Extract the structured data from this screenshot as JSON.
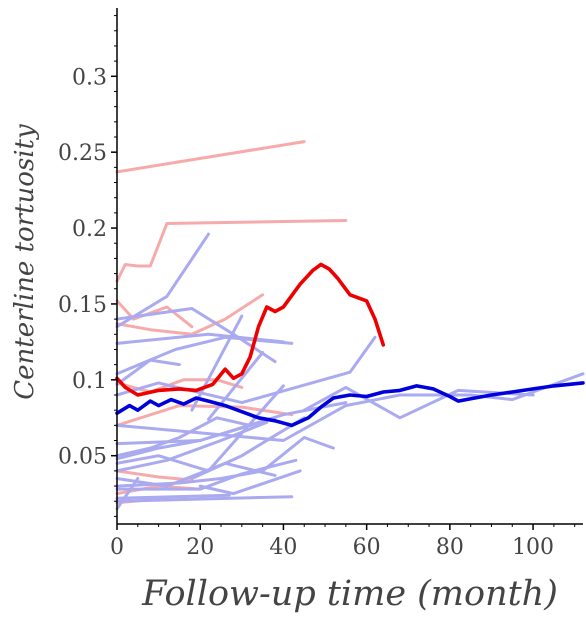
{
  "chart_data": {
    "type": "line",
    "xlabel": "Follow-up time (month)",
    "ylabel": "Centerline tortuosity",
    "xlim": [
      0,
      112
    ],
    "ylim": [
      0.005,
      0.345
    ],
    "x_ticks": [
      0,
      20,
      40,
      60,
      80,
      100
    ],
    "y_ticks": [
      0.05,
      0.1,
      0.15,
      0.2,
      0.25,
      0.3
    ],
    "grid": false,
    "colors": {
      "group_a_individual": "#f6aaaa",
      "group_b_individual": "#aaaaf0",
      "group_a_mean": "#ee0000",
      "group_b_mean": "#0000dd"
    },
    "series": [
      {
        "group": "a",
        "role": "individual",
        "x": [
          0,
          45
        ],
        "y": [
          0.237,
          0.257
        ]
      },
      {
        "group": "a",
        "role": "individual",
        "x": [
          0,
          2,
          5,
          8,
          12,
          55
        ],
        "y": [
          0.165,
          0.176,
          0.175,
          0.175,
          0.203,
          0.205
        ]
      },
      {
        "group": "a",
        "role": "individual",
        "x": [
          0,
          4,
          12,
          18
        ],
        "y": [
          0.152,
          0.14,
          0.148,
          0.135
        ]
      },
      {
        "group": "a",
        "role": "individual",
        "x": [
          0,
          8,
          18,
          26,
          35
        ],
        "y": [
          0.137,
          0.133,
          0.13,
          0.14,
          0.156
        ]
      },
      {
        "group": "a",
        "role": "individual",
        "x": [
          0,
          8,
          16,
          24,
          30
        ],
        "y": [
          0.098,
          0.092,
          0.1,
          0.1,
          0.095
        ]
      },
      {
        "group": "a",
        "role": "individual",
        "x": [
          0,
          15,
          30,
          42
        ],
        "y": [
          0.07,
          0.083,
          0.082,
          0.077
        ]
      },
      {
        "group": "a",
        "role": "individual",
        "x": [
          0,
          10,
          20
        ],
        "y": [
          0.025,
          0.03,
          0.028
        ]
      },
      {
        "group": "a",
        "role": "individual",
        "x": [
          0,
          10,
          18
        ],
        "y": [
          0.04,
          0.036,
          0.034
        ]
      },
      {
        "group": "a",
        "role": "individual",
        "x": [
          0,
          12
        ],
        "y": [
          0.019,
          0.022
        ]
      },
      {
        "group": "b",
        "role": "individual",
        "x": [
          0,
          12,
          22
        ],
        "y": [
          0.135,
          0.155,
          0.196
        ]
      },
      {
        "group": "b",
        "role": "individual",
        "x": [
          0,
          18,
          28,
          38
        ],
        "y": [
          0.14,
          0.147,
          0.13,
          0.112
        ]
      },
      {
        "group": "b",
        "role": "individual",
        "x": [
          0,
          22,
          40
        ],
        "y": [
          0.124,
          0.13,
          0.125
        ]
      },
      {
        "group": "b",
        "role": "individual",
        "x": [
          0,
          8,
          15
        ],
        "y": [
          0.097,
          0.113,
          0.11
        ]
      },
      {
        "group": "b",
        "role": "individual",
        "x": [
          0,
          14,
          26,
          42
        ],
        "y": [
          0.104,
          0.12,
          0.128,
          0.124
        ]
      },
      {
        "group": "b",
        "role": "individual",
        "x": [
          0,
          10,
          30,
          56,
          62
        ],
        "y": [
          0.09,
          0.098,
          0.085,
          0.105,
          0.128
        ]
      },
      {
        "group": "b",
        "role": "individual",
        "x": [
          18,
          30
        ],
        "y": [
          0.08,
          0.142
        ]
      },
      {
        "group": "b",
        "role": "individual",
        "x": [
          22,
          35
        ],
        "y": [
          0.074,
          0.118
        ]
      },
      {
        "group": "b",
        "role": "individual",
        "x": [
          0,
          20,
          40,
          55,
          68,
          85,
          95,
          112
        ],
        "y": [
          0.07,
          0.065,
          0.06,
          0.083,
          0.09,
          0.09,
          0.087,
          0.104
        ]
      },
      {
        "group": "b",
        "role": "individual",
        "x": [
          0,
          20,
          40,
          55
        ],
        "y": [
          0.058,
          0.06,
          0.077,
          0.085
        ]
      },
      {
        "group": "b",
        "role": "individual",
        "x": [
          45,
          55,
          68,
          82,
          100
        ],
        "y": [
          0.08,
          0.095,
          0.075,
          0.093,
          0.09
        ]
      },
      {
        "group": "b",
        "role": "individual",
        "x": [
          0,
          10,
          20,
          38
        ],
        "y": [
          0.048,
          0.055,
          0.06,
          0.075
        ]
      },
      {
        "group": "b",
        "role": "individual",
        "x": [
          0,
          12,
          25,
          36
        ],
        "y": [
          0.04,
          0.047,
          0.06,
          0.072
        ]
      },
      {
        "group": "b",
        "role": "individual",
        "x": [
          0,
          8,
          15,
          24,
          32
        ],
        "y": [
          0.05,
          0.055,
          0.062,
          0.075,
          0.07
        ]
      },
      {
        "group": "b",
        "role": "individual",
        "x": [
          0,
          10,
          22,
          40
        ],
        "y": [
          0.045,
          0.05,
          0.04,
          0.096
        ]
      },
      {
        "group": "b",
        "role": "individual",
        "x": [
          18,
          30,
          45
        ],
        "y": [
          0.035,
          0.05,
          0.075
        ]
      },
      {
        "group": "b",
        "role": "individual",
        "x": [
          0,
          15,
          25,
          35,
          45,
          52
        ],
        "y": [
          0.03,
          0.032,
          0.035,
          0.04,
          0.062,
          0.055
        ]
      },
      {
        "group": "b",
        "role": "individual",
        "x": [
          0,
          12,
          26,
          38
        ],
        "y": [
          0.035,
          0.03,
          0.045,
          0.037
        ]
      },
      {
        "group": "b",
        "role": "individual",
        "x": [
          20,
          28,
          44
        ],
        "y": [
          0.03,
          0.025,
          0.04
        ]
      },
      {
        "group": "b",
        "role": "individual",
        "x": [
          0,
          20,
          30,
          43
        ],
        "y": [
          0.028,
          0.028,
          0.038,
          0.047
        ]
      },
      {
        "group": "b",
        "role": "individual",
        "x": [
          0,
          14,
          27
        ],
        "y": [
          0.022,
          0.023,
          0.024
        ]
      },
      {
        "group": "b",
        "role": "individual",
        "x": [
          0,
          42
        ],
        "y": [
          0.02,
          0.023
        ]
      },
      {
        "group": "b",
        "role": "individual",
        "x": [
          0,
          5
        ],
        "y": [
          0.015,
          0.035
        ]
      },
      {
        "group": "a",
        "role": "mean",
        "x": [
          0,
          2,
          5,
          10,
          15,
          19,
          23,
          26,
          28,
          30,
          32,
          34,
          36,
          38,
          40,
          44,
          47,
          49,
          51,
          53,
          56,
          60,
          62,
          64
        ],
        "y": [
          0.101,
          0.095,
          0.09,
          0.093,
          0.094,
          0.093,
          0.097,
          0.107,
          0.101,
          0.104,
          0.115,
          0.135,
          0.148,
          0.145,
          0.148,
          0.163,
          0.172,
          0.176,
          0.173,
          0.167,
          0.156,
          0.152,
          0.14,
          0.123
        ]
      },
      {
        "group": "b",
        "role": "mean",
        "x": [
          0,
          3,
          5,
          8,
          10,
          13,
          16,
          19,
          22,
          26,
          30,
          34,
          38,
          42,
          46,
          49,
          52,
          56,
          60,
          64,
          68,
          72,
          76,
          80,
          82,
          86,
          90,
          95,
          100,
          105,
          112
        ],
        "y": [
          0.078,
          0.083,
          0.08,
          0.086,
          0.083,
          0.087,
          0.084,
          0.088,
          0.086,
          0.083,
          0.079,
          0.075,
          0.073,
          0.07,
          0.075,
          0.082,
          0.088,
          0.09,
          0.089,
          0.092,
          0.093,
          0.096,
          0.094,
          0.089,
          0.086,
          0.088,
          0.09,
          0.092,
          0.094,
          0.096,
          0.098
        ]
      }
    ]
  }
}
